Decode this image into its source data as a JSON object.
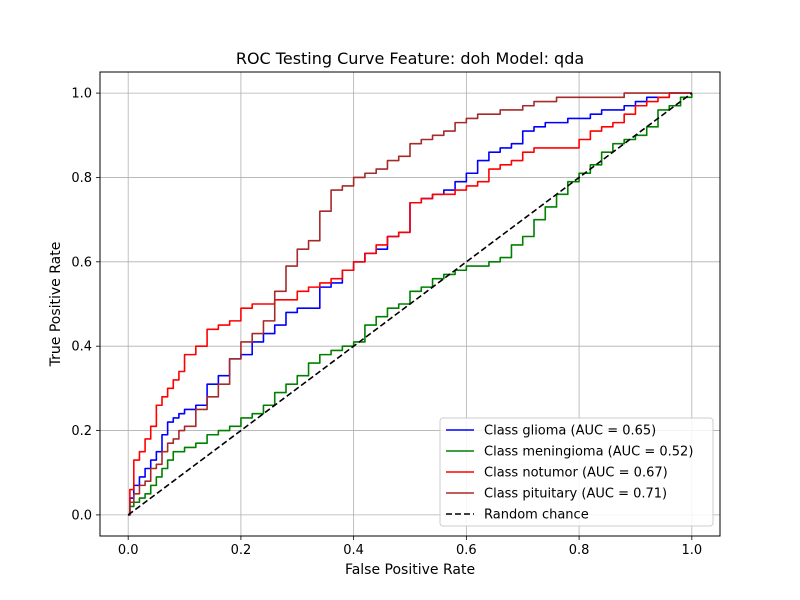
{
  "chart_data": {
    "type": "line",
    "title": "ROC Testing Curve Feature: doh Model: qda",
    "xlabel": "False Positive Rate",
    "ylabel": "True Positive Rate",
    "xlim": [
      -0.05,
      1.05
    ],
    "ylim": [
      -0.05,
      1.05
    ],
    "xticks": [
      "0.0",
      "0.2",
      "0.4",
      "0.6",
      "0.8",
      "1.0"
    ],
    "yticks": [
      "0.0",
      "0.2",
      "0.4",
      "0.6",
      "0.8",
      "1.0"
    ],
    "xtick_values": [
      0,
      0.2,
      0.4,
      0.6,
      0.8,
      1.0
    ],
    "ytick_values": [
      0,
      0.2,
      0.4,
      0.6,
      0.8,
      1.0
    ],
    "grid": true,
    "legend_position": "lower-right",
    "series": [
      {
        "name": "Class glioma (AUC = 0.65)",
        "color": "#0000ff",
        "style": "solid",
        "x": [
          0,
          0.003,
          0.01,
          0.02,
          0.03,
          0.04,
          0.05,
          0.06,
          0.07,
          0.08,
          0.09,
          0.1,
          0.12,
          0.14,
          0.16,
          0.18,
          0.2,
          0.22,
          0.24,
          0.26,
          0.28,
          0.3,
          0.32,
          0.34,
          0.36,
          0.38,
          0.4,
          0.42,
          0.44,
          0.46,
          0.48,
          0.5,
          0.52,
          0.54,
          0.56,
          0.58,
          0.6,
          0.62,
          0.64,
          0.66,
          0.68,
          0.7,
          0.72,
          0.74,
          0.76,
          0.78,
          0.8,
          0.82,
          0.84,
          0.86,
          0.88,
          0.9,
          0.92,
          0.94,
          0.96,
          0.98,
          1.0
        ],
        "y": [
          0,
          0.04,
          0.07,
          0.09,
          0.11,
          0.13,
          0.15,
          0.19,
          0.22,
          0.23,
          0.24,
          0.25,
          0.26,
          0.31,
          0.33,
          0.37,
          0.38,
          0.41,
          0.43,
          0.45,
          0.48,
          0.49,
          0.49,
          0.54,
          0.55,
          0.58,
          0.6,
          0.62,
          0.63,
          0.66,
          0.67,
          0.74,
          0.75,
          0.76,
          0.77,
          0.79,
          0.81,
          0.84,
          0.86,
          0.87,
          0.88,
          0.91,
          0.92,
          0.93,
          0.93,
          0.94,
          0.94,
          0.95,
          0.96,
          0.96,
          0.97,
          0.98,
          0.99,
          0.99,
          1.0,
          1.0,
          1.0
        ]
      },
      {
        "name": "Class meningioma (AUC = 0.52)",
        "color": "#008000",
        "style": "solid",
        "x": [
          0,
          0.003,
          0.01,
          0.02,
          0.03,
          0.04,
          0.05,
          0.06,
          0.07,
          0.08,
          0.1,
          0.12,
          0.14,
          0.16,
          0.18,
          0.2,
          0.22,
          0.24,
          0.26,
          0.28,
          0.3,
          0.32,
          0.34,
          0.36,
          0.38,
          0.4,
          0.42,
          0.44,
          0.46,
          0.48,
          0.5,
          0.52,
          0.54,
          0.56,
          0.58,
          0.6,
          0.62,
          0.64,
          0.66,
          0.68,
          0.7,
          0.72,
          0.74,
          0.76,
          0.78,
          0.8,
          0.82,
          0.84,
          0.86,
          0.88,
          0.9,
          0.92,
          0.94,
          0.96,
          0.98,
          1.0
        ],
        "y": [
          0,
          0.02,
          0.03,
          0.04,
          0.05,
          0.07,
          0.09,
          0.11,
          0.13,
          0.15,
          0.16,
          0.17,
          0.19,
          0.2,
          0.21,
          0.23,
          0.24,
          0.26,
          0.29,
          0.31,
          0.33,
          0.36,
          0.38,
          0.39,
          0.4,
          0.41,
          0.45,
          0.47,
          0.49,
          0.5,
          0.53,
          0.54,
          0.56,
          0.57,
          0.58,
          0.59,
          0.59,
          0.6,
          0.61,
          0.64,
          0.66,
          0.7,
          0.73,
          0.76,
          0.79,
          0.81,
          0.83,
          0.86,
          0.88,
          0.89,
          0.9,
          0.92,
          0.96,
          0.97,
          0.99,
          1.0
        ]
      },
      {
        "name": "Class notumor (AUC = 0.67)",
        "color": "#ff0000",
        "style": "solid",
        "x": [
          0,
          0.003,
          0.01,
          0.02,
          0.03,
          0.04,
          0.05,
          0.06,
          0.07,
          0.08,
          0.09,
          0.1,
          0.12,
          0.14,
          0.16,
          0.18,
          0.2,
          0.22,
          0.24,
          0.26,
          0.28,
          0.3,
          0.32,
          0.34,
          0.36,
          0.38,
          0.4,
          0.42,
          0.44,
          0.46,
          0.48,
          0.5,
          0.52,
          0.54,
          0.56,
          0.58,
          0.6,
          0.62,
          0.64,
          0.66,
          0.68,
          0.7,
          0.72,
          0.74,
          0.76,
          0.78,
          0.8,
          0.82,
          0.84,
          0.86,
          0.88,
          0.9,
          0.92,
          0.94,
          0.96,
          0.98,
          1.0
        ],
        "y": [
          0,
          0.06,
          0.13,
          0.15,
          0.18,
          0.21,
          0.26,
          0.28,
          0.3,
          0.32,
          0.34,
          0.38,
          0.4,
          0.44,
          0.45,
          0.46,
          0.49,
          0.5,
          0.5,
          0.51,
          0.51,
          0.53,
          0.54,
          0.55,
          0.56,
          0.58,
          0.6,
          0.62,
          0.64,
          0.66,
          0.67,
          0.74,
          0.75,
          0.76,
          0.76,
          0.77,
          0.78,
          0.79,
          0.82,
          0.83,
          0.84,
          0.86,
          0.87,
          0.87,
          0.87,
          0.87,
          0.89,
          0.91,
          0.92,
          0.93,
          0.95,
          0.97,
          0.98,
          0.99,
          1.0,
          1.0,
          1.0
        ]
      },
      {
        "name": "Class pituitary (AUC = 0.71)",
        "color": "#a52a2a",
        "style": "solid",
        "x": [
          0,
          0.003,
          0.01,
          0.02,
          0.03,
          0.04,
          0.05,
          0.06,
          0.07,
          0.08,
          0.09,
          0.1,
          0.12,
          0.14,
          0.16,
          0.18,
          0.2,
          0.22,
          0.24,
          0.26,
          0.28,
          0.3,
          0.32,
          0.34,
          0.36,
          0.38,
          0.4,
          0.42,
          0.44,
          0.46,
          0.48,
          0.5,
          0.52,
          0.54,
          0.56,
          0.58,
          0.6,
          0.62,
          0.64,
          0.66,
          0.68,
          0.7,
          0.72,
          0.74,
          0.76,
          0.78,
          0.8,
          0.82,
          0.84,
          0.86,
          0.88,
          0.9,
          0.92,
          0.94,
          0.96,
          0.98,
          1.0
        ],
        "y": [
          0,
          0.03,
          0.05,
          0.07,
          0.08,
          0.11,
          0.12,
          0.15,
          0.17,
          0.18,
          0.2,
          0.21,
          0.25,
          0.28,
          0.31,
          0.37,
          0.41,
          0.43,
          0.46,
          0.53,
          0.59,
          0.63,
          0.65,
          0.72,
          0.77,
          0.78,
          0.8,
          0.81,
          0.82,
          0.84,
          0.85,
          0.88,
          0.89,
          0.9,
          0.91,
          0.93,
          0.94,
          0.95,
          0.95,
          0.96,
          0.96,
          0.97,
          0.98,
          0.98,
          0.99,
          0.99,
          0.99,
          0.99,
          0.99,
          0.99,
          1.0,
          1.0,
          1.0,
          1.0,
          1.0,
          1.0,
          1.0
        ]
      },
      {
        "name": "Random chance",
        "color": "#000000",
        "style": "dashed",
        "x": [
          0,
          1
        ],
        "y": [
          0,
          1
        ]
      }
    ]
  }
}
